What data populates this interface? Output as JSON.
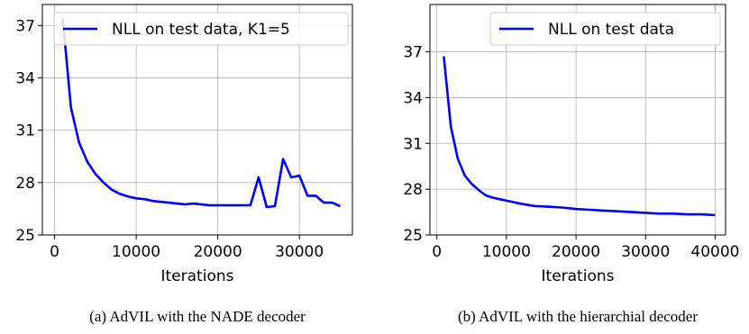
{
  "chart_data": [
    {
      "type": "line",
      "caption": "(a)  AdVIL with the NADE decoder",
      "xlabel": "Iterations",
      "ylabel": "",
      "xlim": [
        -1500,
        36500
      ],
      "ylim": [
        25,
        38.2
      ],
      "xticks": [
        0,
        10000,
        20000,
        30000
      ],
      "yticks": [
        25,
        28,
        31,
        34,
        37
      ],
      "grid": true,
      "legend_position": "top-right",
      "series": [
        {
          "name": "NLL on test data, K1=5",
          "color": "#0000ff",
          "x": [
            1000,
            2000,
            3000,
            4000,
            5000,
            6000,
            7000,
            8000,
            9000,
            10000,
            11000,
            12000,
            13000,
            14000,
            15000,
            16000,
            17000,
            18000,
            19000,
            20000,
            21000,
            22000,
            23000,
            24000,
            25000,
            26000,
            27000,
            28000,
            29000,
            30000,
            31000,
            32000,
            33000,
            34000,
            35000
          ],
          "y": [
            37.4,
            32.3,
            30.3,
            29.2,
            28.5,
            28.0,
            27.6,
            27.35,
            27.2,
            27.1,
            27.05,
            26.95,
            26.9,
            26.85,
            26.8,
            26.75,
            26.8,
            26.75,
            26.7,
            26.7,
            26.7,
            26.7,
            26.7,
            26.7,
            28.3,
            26.6,
            26.65,
            29.35,
            28.3,
            28.4,
            27.25,
            27.25,
            26.85,
            26.85,
            26.65
          ]
        }
      ]
    },
    {
      "type": "line",
      "caption": "(b)  AdVIL with the hierarchial decoder",
      "xlabel": "Iterations",
      "ylabel": "",
      "xlim": [
        -1000,
        41500
      ],
      "ylim": [
        25,
        40.1
      ],
      "xticks": [
        0,
        10000,
        20000,
        30000,
        40000
      ],
      "yticks": [
        25,
        28,
        31,
        34,
        37
      ],
      "grid": true,
      "legend_position": "top-right",
      "series": [
        {
          "name": "NLL on test data",
          "color": "#0000ff",
          "x": [
            1000,
            2000,
            3000,
            4000,
            5000,
            6000,
            7000,
            8000,
            9000,
            10000,
            12000,
            14000,
            16000,
            18000,
            20000,
            22000,
            24000,
            26000,
            28000,
            30000,
            32000,
            34000,
            36000,
            38000,
            40000
          ],
          "y": [
            36.7,
            32.1,
            30.0,
            28.9,
            28.35,
            27.95,
            27.6,
            27.45,
            27.35,
            27.25,
            27.05,
            26.9,
            26.85,
            26.8,
            26.7,
            26.65,
            26.6,
            26.55,
            26.5,
            26.45,
            26.4,
            26.4,
            26.35,
            26.35,
            26.3
          ]
        }
      ]
    }
  ]
}
